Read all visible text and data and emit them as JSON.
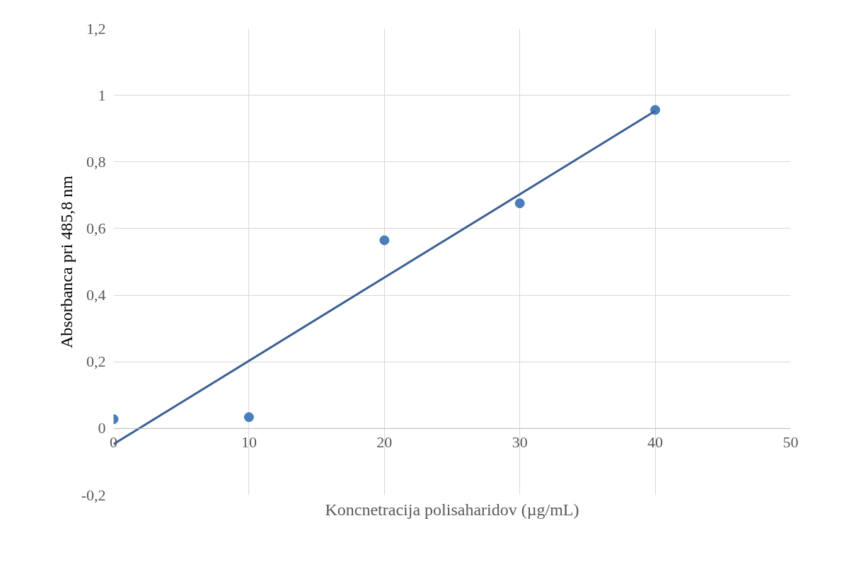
{
  "chart_data": {
    "type": "scatter",
    "xlabel": "Koncnetracija polisaharidov (µg/mL)",
    "ylabel": "Absorbanca pri 485,8 nm",
    "series": [
      {
        "color": "#4a7ebb",
        "marker": "circle",
        "x": [
          0,
          10,
          20,
          30,
          40
        ],
        "values": [
          0.028,
          0.034,
          0.565,
          0.676,
          0.956
        ]
      },
      {
        "type": "line",
        "color": "#3a5f93",
        "marker": "none",
        "line_style": "solid",
        "x": [
          0,
          40
        ],
        "values": [
          -0.047,
          0.953
        ]
      }
    ],
    "xlim": [
      0,
      50
    ],
    "ylim": [
      -0.2,
      1.2
    ],
    "xticks": [
      0,
      10,
      20,
      30,
      40,
      50
    ],
    "yticks": [
      {
        "value": -0.2,
        "label": "-0,2"
      },
      0,
      {
        "value": 0.2,
        "label": "0,2"
      },
      {
        "value": 0.4,
        "label": "0,4"
      },
      {
        "value": 0.6,
        "label": "0,6"
      },
      {
        "value": 0.8,
        "label": "0,8"
      },
      1,
      {
        "value": 1.2,
        "label": "1,2"
      }
    ],
    "grid": true
  }
}
